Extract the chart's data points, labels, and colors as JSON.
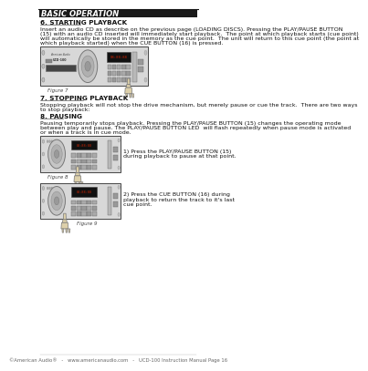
{
  "page_bg": "#ffffff",
  "header_bg": "#1a1a1a",
  "header_text": "BASIC OPERATION",
  "header_text_color": "#ffffff",
  "section6_title": "6. STARTING PLAYBACK",
  "section6_body1": "Insert an audio CD as describe on the previous page (LOADING DISCS). Pressing the PLAY/PAUSE BUTTON",
  "section6_body2": "(15) with an audio CD inserted will immediately start playback.  The point at which playback starts (cue point)",
  "section6_body3": "will automatically be stored in the memory as the cue point.  The unit will return to this cue point (the point at",
  "section6_body4": "which playback started) when the CUE BUTTON (16) is pressed.",
  "fig7_label": "Figure 7",
  "section7_title": "7. STOPPING PLAYBACK",
  "section7_body1": "Stopping playback will not stop the drive mechanism, but merely pause or cue the track.  There are two ways",
  "section7_body2": "to stop playback:",
  "section8_title": "8. PAUSING",
  "section8_body1": "Pausing temporarily stops playback. Pressing the PLAY/PAUSE BUTTON (15) changes the operating mode",
  "section8_body2": "between play and pause. The PLAY/PAUSE BUTTON LED  will flash repeatedly when pause mode is activated",
  "section8_body3": "or when a track is in cue mode.",
  "fig8_label": "Figure 8",
  "fig9_label": "Figure 9",
  "caption1a": "1) Press the PLAY/PAUSE BUTTON (15)",
  "caption1b": "during playback to pause at that point.",
  "caption2a": "2) Press the CUE BUTTON (16) during",
  "caption2b": "playback to return the track to it's last",
  "caption2c": "cue point.",
  "footer": "©American Audio®   -   www.americanaudio.com   -   UCD-100 Instruction Manual Page 16",
  "body_font_size": 4.5,
  "title_font_size": 5.2,
  "header_font_size": 6.0,
  "caption_font_size": 4.5
}
